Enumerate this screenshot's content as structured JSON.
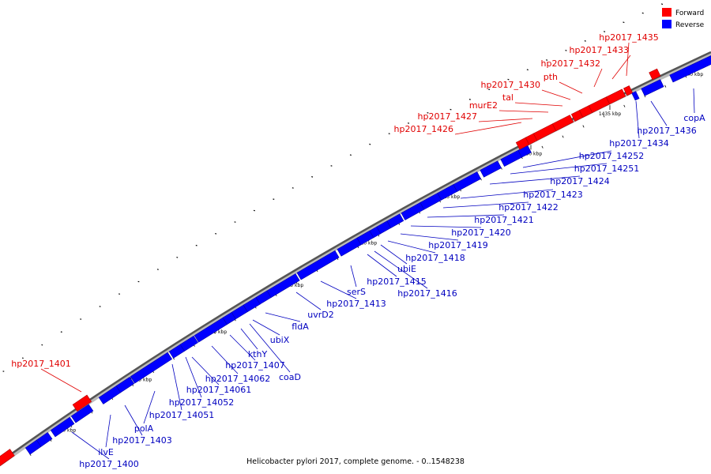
{
  "legend": {
    "forward": {
      "label": "Forward",
      "color": "#ff0000"
    },
    "reverse": {
      "label": "Reverse",
      "color": "#0000ff"
    }
  },
  "caption": "Helicobacter pylori 2017, complete genome. - 0..1548238",
  "ticks": [
    "1400 kbp",
    "1405 kbp",
    "1410 kbp",
    "1415 kbp",
    "1420 kbp",
    "1425 kbp",
    "1430 kbp",
    "1435 kbp",
    "1440 kbp"
  ],
  "genes_forward": [
    "hp2017_1401",
    "hp2017_1426",
    "hp2017_1427",
    "murE2",
    "tal",
    "hp2017_1430",
    "pth",
    "hp2017_1432",
    "hp2017_1433",
    "hp2017_1435"
  ],
  "genes_reverse": [
    "hp2017_1400",
    "ilvE",
    "hp2017_1403",
    "polA",
    "hp2017_14051",
    "hp2017_14052",
    "hp2017_14061",
    "hp2017_14062",
    "hp2017_1407",
    "kthY",
    "coaD",
    "ubiX",
    "fldA",
    "uvrD2",
    "hp2017_1413",
    "serS",
    "hp2017_1415",
    "hp2017_1416",
    "ubiE",
    "hp2017_1418",
    "hp2017_1419",
    "hp2017_1420",
    "hp2017_1421",
    "hp2017_1422",
    "hp2017_1423",
    "hp2017_1424",
    "hp2017_14251",
    "hp2017_14252",
    "hp2017_1434",
    "hp2017_1436",
    "copA"
  ]
}
